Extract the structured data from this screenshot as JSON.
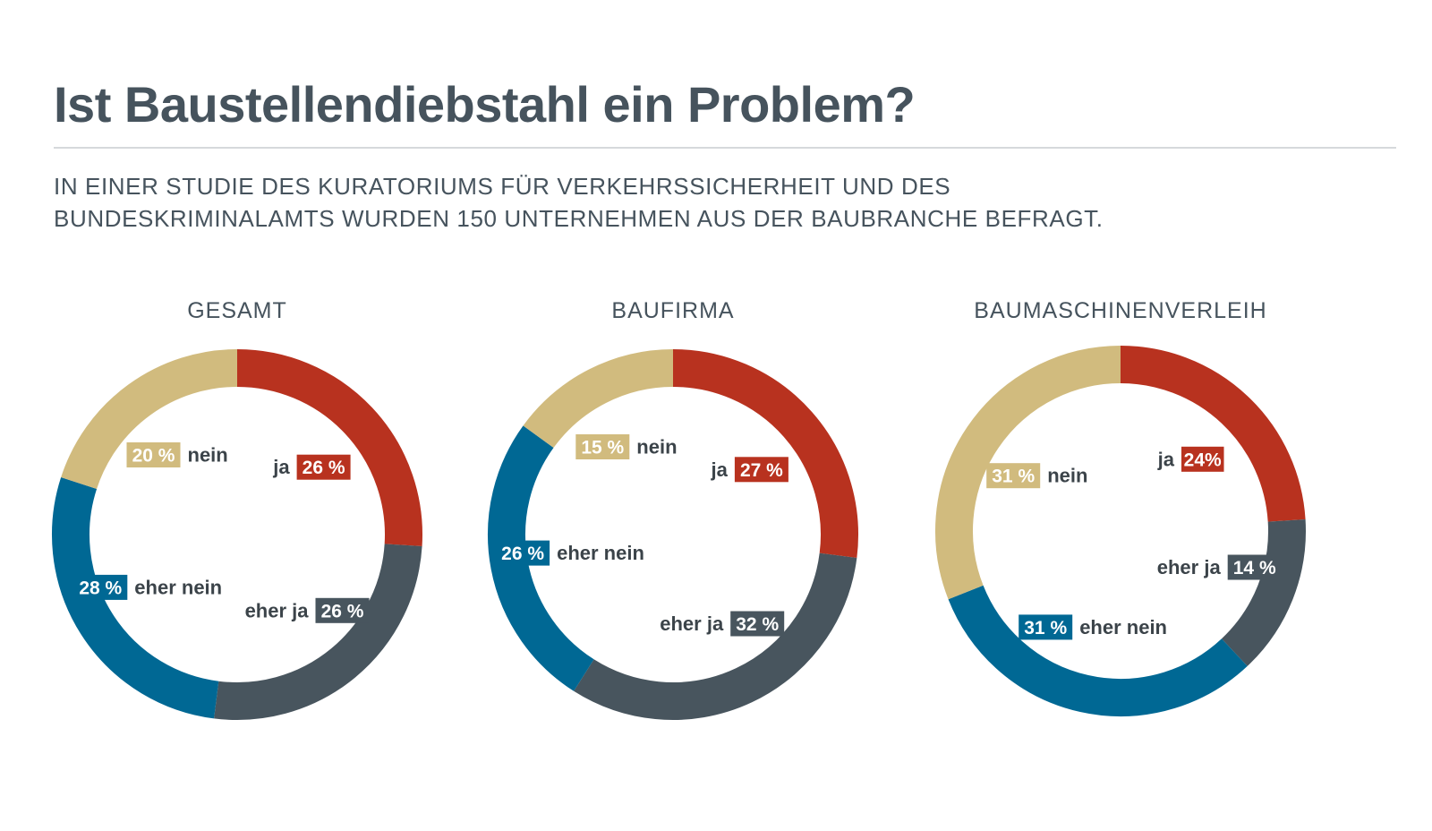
{
  "header": {
    "title": "Ist Baustellendiebstahl ein Problem?",
    "subtitle_line1": "IN EINER STUDIE DES KURATORIUMS FÜR VERKEHRSSICHERHEIT UND DES",
    "subtitle_line2": "BUNDESKRIMINALAMTS WURDEN 150 UNTERNEHMEN AUS DER BAUBRANCHE BEFRAGT."
  },
  "colors": {
    "ja": "#b8321f",
    "eher ja": "#48555e",
    "eher nein": "#006894",
    "nein": "#d1bb7e",
    "text": "#46535d"
  },
  "chart_data": [
    {
      "type": "pie",
      "title": "GESAMT",
      "categories": [
        "ja",
        "eher ja",
        "eher nein",
        "nein"
      ],
      "values": [
        26,
        26,
        28,
        20
      ],
      "value_labels": [
        "26 %",
        "26 %",
        "28 %",
        "20 %"
      ]
    },
    {
      "type": "pie",
      "title": "BAUFIRMA",
      "categories": [
        "ja",
        "eher ja",
        "eher nein",
        "nein"
      ],
      "values": [
        27,
        32,
        26,
        15
      ],
      "value_labels": [
        "27 %",
        "32 %",
        "26 %",
        "15 %"
      ]
    },
    {
      "type": "pie",
      "title": "BAUMASCHINENVERLEIH",
      "categories": [
        "ja",
        "eher ja",
        "eher nein",
        "nein"
      ],
      "values": [
        24,
        14,
        31,
        31
      ],
      "value_labels": [
        "24%",
        "14 %",
        "31 %",
        "31 %"
      ]
    }
  ]
}
